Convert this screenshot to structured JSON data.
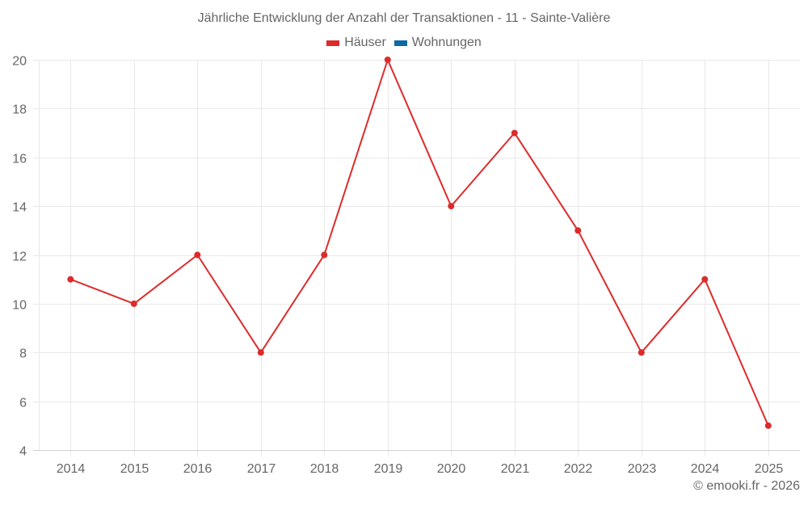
{
  "title": "Jährliche Entwicklung der Anzahl der Transaktionen - 11 - Sainte-Valière",
  "legend": [
    {
      "label": "Häuser",
      "color": "#dd2b2b"
    },
    {
      "label": "Wohnungen",
      "color": "#0b69a3"
    }
  ],
  "credits": "© emooki.fr - 2026",
  "colors": {
    "line": "#dd2b2b",
    "grid": "#e8e8e8",
    "axis": "#d0d0d0",
    "text": "#666666"
  },
  "chart_data": {
    "type": "line",
    "title": "Jährliche Entwicklung der Anzahl der Transaktionen - 11 - Sainte-Valière",
    "xlabel": "",
    "ylabel": "",
    "categories": [
      "2014",
      "2015",
      "2016",
      "2017",
      "2018",
      "2019",
      "2020",
      "2021",
      "2022",
      "2023",
      "2024",
      "2025"
    ],
    "series": [
      {
        "name": "Häuser",
        "color": "#dd2b2b",
        "values": [
          11,
          10,
          12,
          8,
          12,
          20,
          14,
          17,
          13,
          8,
          11,
          5
        ]
      },
      {
        "name": "Wohnungen",
        "color": "#0b69a3",
        "values": []
      }
    ],
    "ylim": [
      4,
      20
    ],
    "yticks": [
      4,
      6,
      8,
      10,
      12,
      14,
      16,
      18,
      20
    ],
    "grid": true,
    "legend_position": "top-center"
  }
}
